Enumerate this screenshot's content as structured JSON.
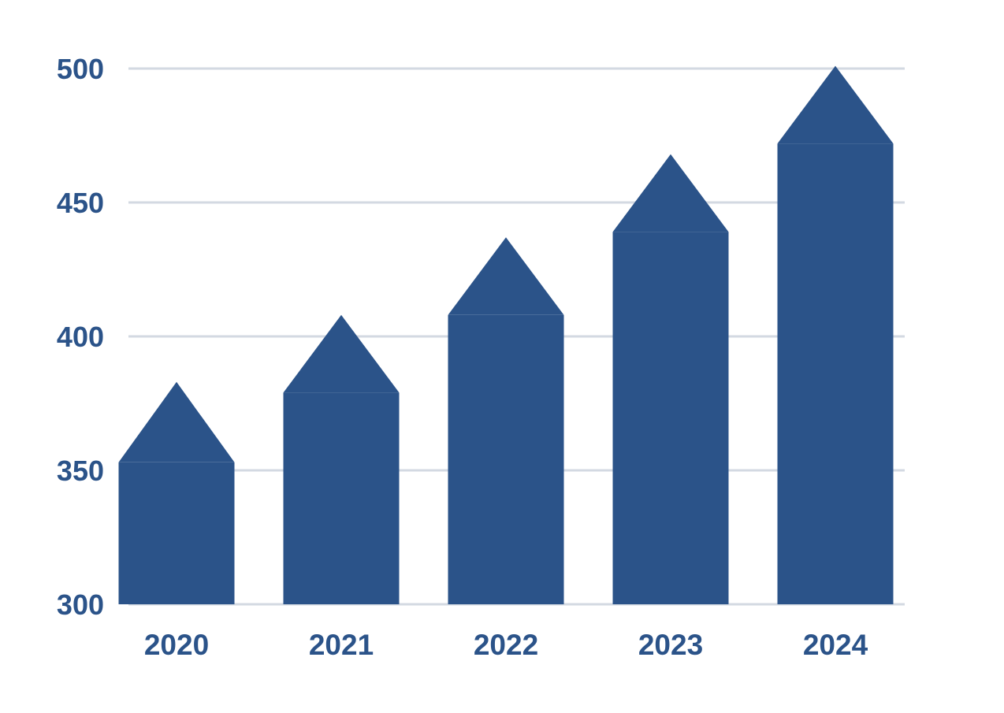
{
  "chart_data": {
    "type": "bar",
    "title": "",
    "xlabel": "",
    "ylabel": "",
    "categories": [
      "2020",
      "2021",
      "2022",
      "2023",
      "2024"
    ],
    "series": [
      {
        "values": [
          353,
          379,
          408,
          439,
          472
        ]
      }
    ],
    "arrow_tips": [
      383,
      408,
      437,
      468,
      501
    ],
    "ylim": [
      300,
      500
    ],
    "yticks": [
      "300",
      "350",
      "400",
      "450",
      "500"
    ],
    "grid": true,
    "legend": "none",
    "colors": {
      "bar": "#2b5389",
      "grid": "#d3d9e2",
      "text": "#2b5389"
    }
  }
}
